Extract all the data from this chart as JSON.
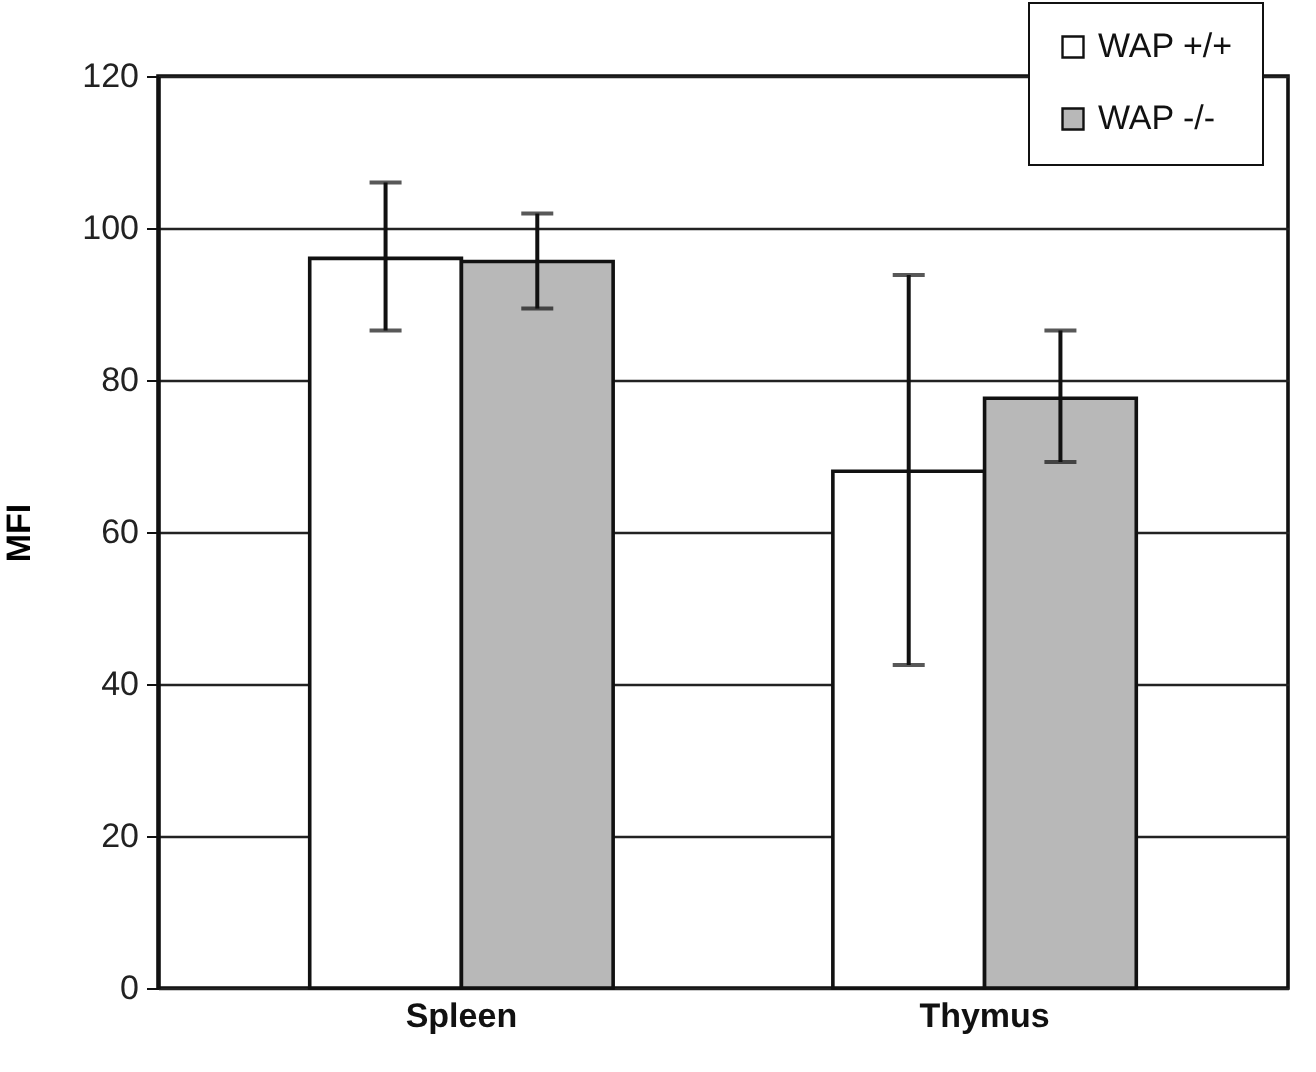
{
  "chart_data": {
    "type": "bar",
    "ylabel": "MFI",
    "categories": [
      "Spleen",
      "Thymus"
    ],
    "series": [
      {
        "name": "WAP +/+",
        "color": "#ffffff",
        "values": [
          96,
          68
        ],
        "errors": [
          [
            86.5,
            106
          ],
          [
            42.5,
            93.8
          ]
        ]
      },
      {
        "name": "WAP -/-",
        "color": "#b8b8b8",
        "values": [
          95.6,
          77.6
        ],
        "errors": [
          [
            89.4,
            101.9
          ],
          [
            69.2,
            86.5
          ]
        ]
      }
    ],
    "ylim": [
      0,
      120
    ],
    "yticks": [
      0,
      20,
      40,
      60,
      80,
      100,
      120
    ],
    "grid": "y",
    "legend": "top right"
  }
}
